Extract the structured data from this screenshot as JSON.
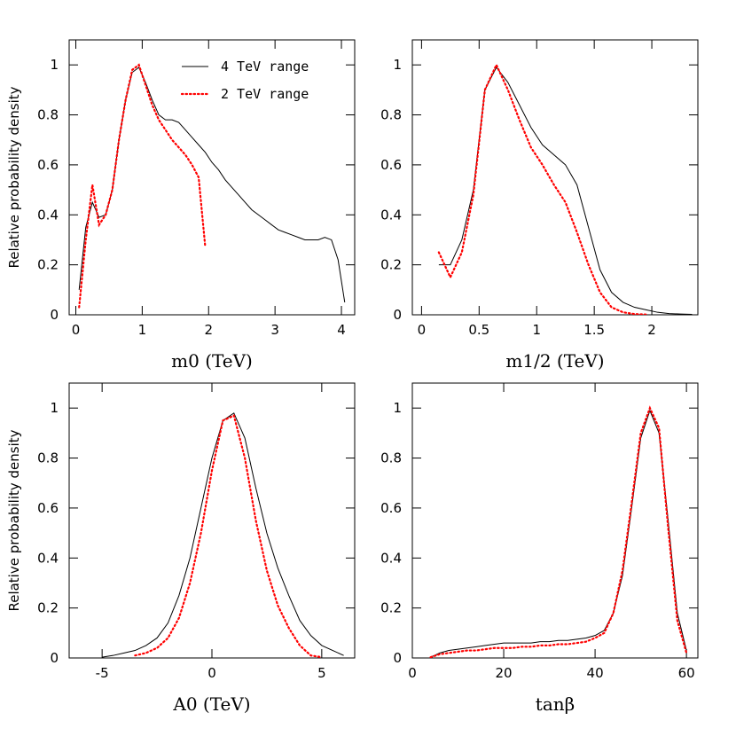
{
  "chart_data": [
    {
      "type": "line",
      "x_label": "m0 (TeV)",
      "y_label": "Relative probability density",
      "legend": "upper right",
      "x": [
        0.05,
        0.15,
        0.25,
        0.35,
        0.45,
        0.55,
        0.65,
        0.75,
        0.85,
        0.95,
        1.05,
        1.15,
        1.25,
        1.35,
        1.45,
        1.55,
        1.65,
        1.75,
        1.85,
        1.95,
        2.05,
        2.15,
        2.25,
        2.35,
        2.45,
        2.55,
        2.65,
        2.75,
        2.85,
        2.95,
        3.05,
        3.15,
        3.25,
        3.35,
        3.45,
        3.55,
        3.65,
        3.75,
        3.85,
        3.95,
        4.05
      ],
      "series": [
        {
          "name": "4 TeV range",
          "color": "#000000",
          "style": "solid",
          "values": [
            0.1,
            0.35,
            0.45,
            0.39,
            0.4,
            0.5,
            0.7,
            0.86,
            0.97,
            0.99,
            0.93,
            0.86,
            0.8,
            0.78,
            0.78,
            0.77,
            0.74,
            0.71,
            0.68,
            0.65,
            0.61,
            0.58,
            0.54,
            0.51,
            0.48,
            0.45,
            0.42,
            0.4,
            0.38,
            0.36,
            0.34,
            0.33,
            0.32,
            0.31,
            0.3,
            0.3,
            0.3,
            0.31,
            0.3,
            0.22,
            0.05
          ]
        },
        {
          "name": "2 TeV range",
          "color": "#ff0000",
          "style": "dotted",
          "values": [
            0.03,
            0.3,
            0.52,
            0.36,
            0.4,
            0.5,
            0.7,
            0.86,
            0.98,
            1.0,
            0.92,
            0.84,
            0.78,
            0.74,
            0.7,
            0.67,
            0.64,
            0.6,
            0.55,
            0.27,
            null,
            null,
            null,
            null,
            null,
            null,
            null,
            null,
            null,
            null,
            null,
            null,
            null,
            null,
            null,
            null,
            null,
            null,
            null,
            null,
            null
          ]
        }
      ],
      "xlim": [
        -0.1,
        4.2
      ],
      "ylim": [
        0,
        1.1
      ],
      "xticks": [
        0,
        1,
        2,
        3,
        4
      ],
      "yticks": [
        0,
        0.2,
        0.4,
        0.6,
        0.8,
        1
      ]
    },
    {
      "type": "line",
      "x_label": "m1/2 (TeV)",
      "x": [
        0.15,
        0.25,
        0.35,
        0.45,
        0.55,
        0.65,
        0.75,
        0.85,
        0.95,
        1.05,
        1.15,
        1.25,
        1.35,
        1.45,
        1.55,
        1.65,
        1.75,
        1.85,
        1.95,
        2.05,
        2.15,
        2.25,
        2.35
      ],
      "series": [
        {
          "color": "#000000",
          "style": "solid",
          "values": [
            0.2,
            0.2,
            0.3,
            0.5,
            0.9,
            0.99,
            0.93,
            0.84,
            0.75,
            0.68,
            0.64,
            0.6,
            0.52,
            0.35,
            0.18,
            0.09,
            0.05,
            0.03,
            0.02,
            0.01,
            0.005,
            0.003,
            0.002
          ]
        },
        {
          "color": "#ff0000",
          "style": "dotted",
          "values": [
            0.25,
            0.15,
            0.25,
            0.48,
            0.9,
            1.0,
            0.9,
            0.78,
            0.67,
            0.6,
            0.52,
            0.45,
            0.33,
            0.2,
            0.09,
            0.03,
            0.01,
            0.003,
            0.001,
            null,
            null,
            null,
            null
          ]
        }
      ],
      "xlim": [
        -0.08,
        2.4
      ],
      "ylim": [
        0,
        1.1
      ],
      "xticks": [
        0,
        0.5,
        1,
        1.5,
        2
      ],
      "yticks": [
        0,
        0.2,
        0.4,
        0.6,
        0.8,
        1
      ]
    },
    {
      "type": "line",
      "x_label": "A0 (TeV)",
      "y_label": "Relative probability density",
      "x": [
        -5,
        -4.5,
        -4,
        -3.5,
        -3,
        -2.5,
        -2,
        -1.5,
        -1,
        -0.5,
        0,
        0.5,
        1,
        1.5,
        2,
        2.5,
        3,
        3.5,
        4,
        4.5,
        5,
        5.5,
        6
      ],
      "series": [
        {
          "color": "#000000",
          "style": "solid",
          "values": [
            0.003,
            0.01,
            0.02,
            0.03,
            0.05,
            0.08,
            0.14,
            0.25,
            0.4,
            0.6,
            0.8,
            0.95,
            0.98,
            0.88,
            0.68,
            0.5,
            0.36,
            0.25,
            0.15,
            0.09,
            0.05,
            0.03,
            0.01
          ]
        },
        {
          "color": "#ff0000",
          "style": "dotted",
          "values": [
            null,
            null,
            null,
            0.01,
            0.02,
            0.04,
            0.08,
            0.16,
            0.3,
            0.5,
            0.75,
            0.95,
            0.97,
            0.8,
            0.55,
            0.35,
            0.21,
            0.12,
            0.05,
            0.01,
            0.003,
            null,
            null
          ]
        }
      ],
      "xlim": [
        -6.5,
        6.5
      ],
      "ylim": [
        0,
        1.1
      ],
      "xticks": [
        -5,
        0,
        5
      ],
      "yticks": [
        0,
        0.2,
        0.4,
        0.6,
        0.8,
        1
      ]
    },
    {
      "type": "line",
      "x_label": "tanβ",
      "x": [
        4,
        6,
        8,
        10,
        12,
        14,
        16,
        18,
        20,
        22,
        24,
        26,
        28,
        30,
        32,
        34,
        36,
        38,
        40,
        42,
        44,
        46,
        48,
        50,
        52,
        54,
        56,
        58,
        60
      ],
      "series": [
        {
          "color": "#000000",
          "style": "solid",
          "values": [
            0.003,
            0.02,
            0.03,
            0.035,
            0.04,
            0.045,
            0.05,
            0.055,
            0.06,
            0.06,
            0.06,
            0.06,
            0.065,
            0.065,
            0.07,
            0.07,
            0.075,
            0.08,
            0.09,
            0.11,
            0.18,
            0.33,
            0.6,
            0.88,
            0.99,
            0.9,
            0.55,
            0.18,
            0.03
          ]
        },
        {
          "color": "#ff0000",
          "style": "dotted",
          "values": [
            0.003,
            0.015,
            0.02,
            0.025,
            0.03,
            0.03,
            0.035,
            0.04,
            0.04,
            0.04,
            0.045,
            0.045,
            0.05,
            0.05,
            0.055,
            0.055,
            0.06,
            0.065,
            0.08,
            0.1,
            0.18,
            0.35,
            0.62,
            0.9,
            1.0,
            0.92,
            0.52,
            0.15,
            0.02
          ]
        }
      ],
      "xlim": [
        0,
        62.5
      ],
      "ylim": [
        0,
        1.1
      ],
      "xticks": [
        0,
        20,
        40,
        60
      ],
      "yticks": [
        0,
        0.2,
        0.4,
        0.6,
        0.8,
        1
      ]
    }
  ]
}
